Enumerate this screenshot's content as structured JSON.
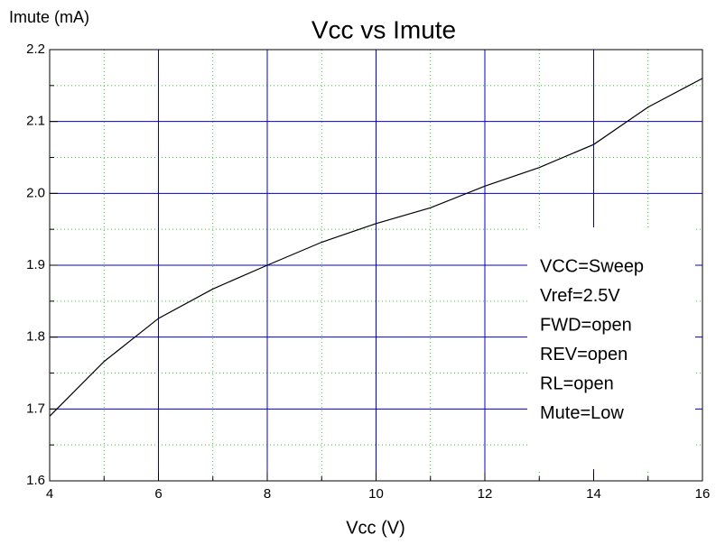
{
  "chart_data": {
    "type": "line",
    "title": "Vcc vs Imute",
    "x_label": "Vcc (V)",
    "y_label": "Imute (mA)",
    "x": [
      4,
      5,
      6,
      7,
      8,
      9,
      10,
      11,
      12,
      13,
      14,
      15,
      16
    ],
    "series": [
      {
        "name": "Imute",
        "color": "#000000",
        "values": [
          1.69,
          1.766,
          1.826,
          1.867,
          1.9,
          1.932,
          1.958,
          1.98,
          2.01,
          2.036,
          2.068,
          2.12,
          2.16
        ]
      }
    ],
    "xlim": [
      4,
      16
    ],
    "ylim": [
      1.6,
      2.2
    ],
    "xticks": [
      4,
      6,
      8,
      10,
      12,
      14,
      16
    ],
    "yticks": [
      1.6,
      1.7,
      1.8,
      1.9,
      {
        "value": 2.0,
        "label": "2.0"
      },
      2.1,
      2.2
    ],
    "xminorticks": [
      5,
      7,
      9,
      11,
      13,
      15
    ],
    "yminorticks": [
      1.65,
      1.75,
      1.85,
      1.95,
      2.05,
      2.15
    ],
    "grid": true,
    "grid_color": "#0000cc",
    "minor_grid_color": "#33cc33",
    "annotations": [
      "VCC=Sweep",
      "Vref=2.5V",
      "FWD=open",
      "REV=open",
      "RL=open",
      "Mute=Low"
    ]
  }
}
